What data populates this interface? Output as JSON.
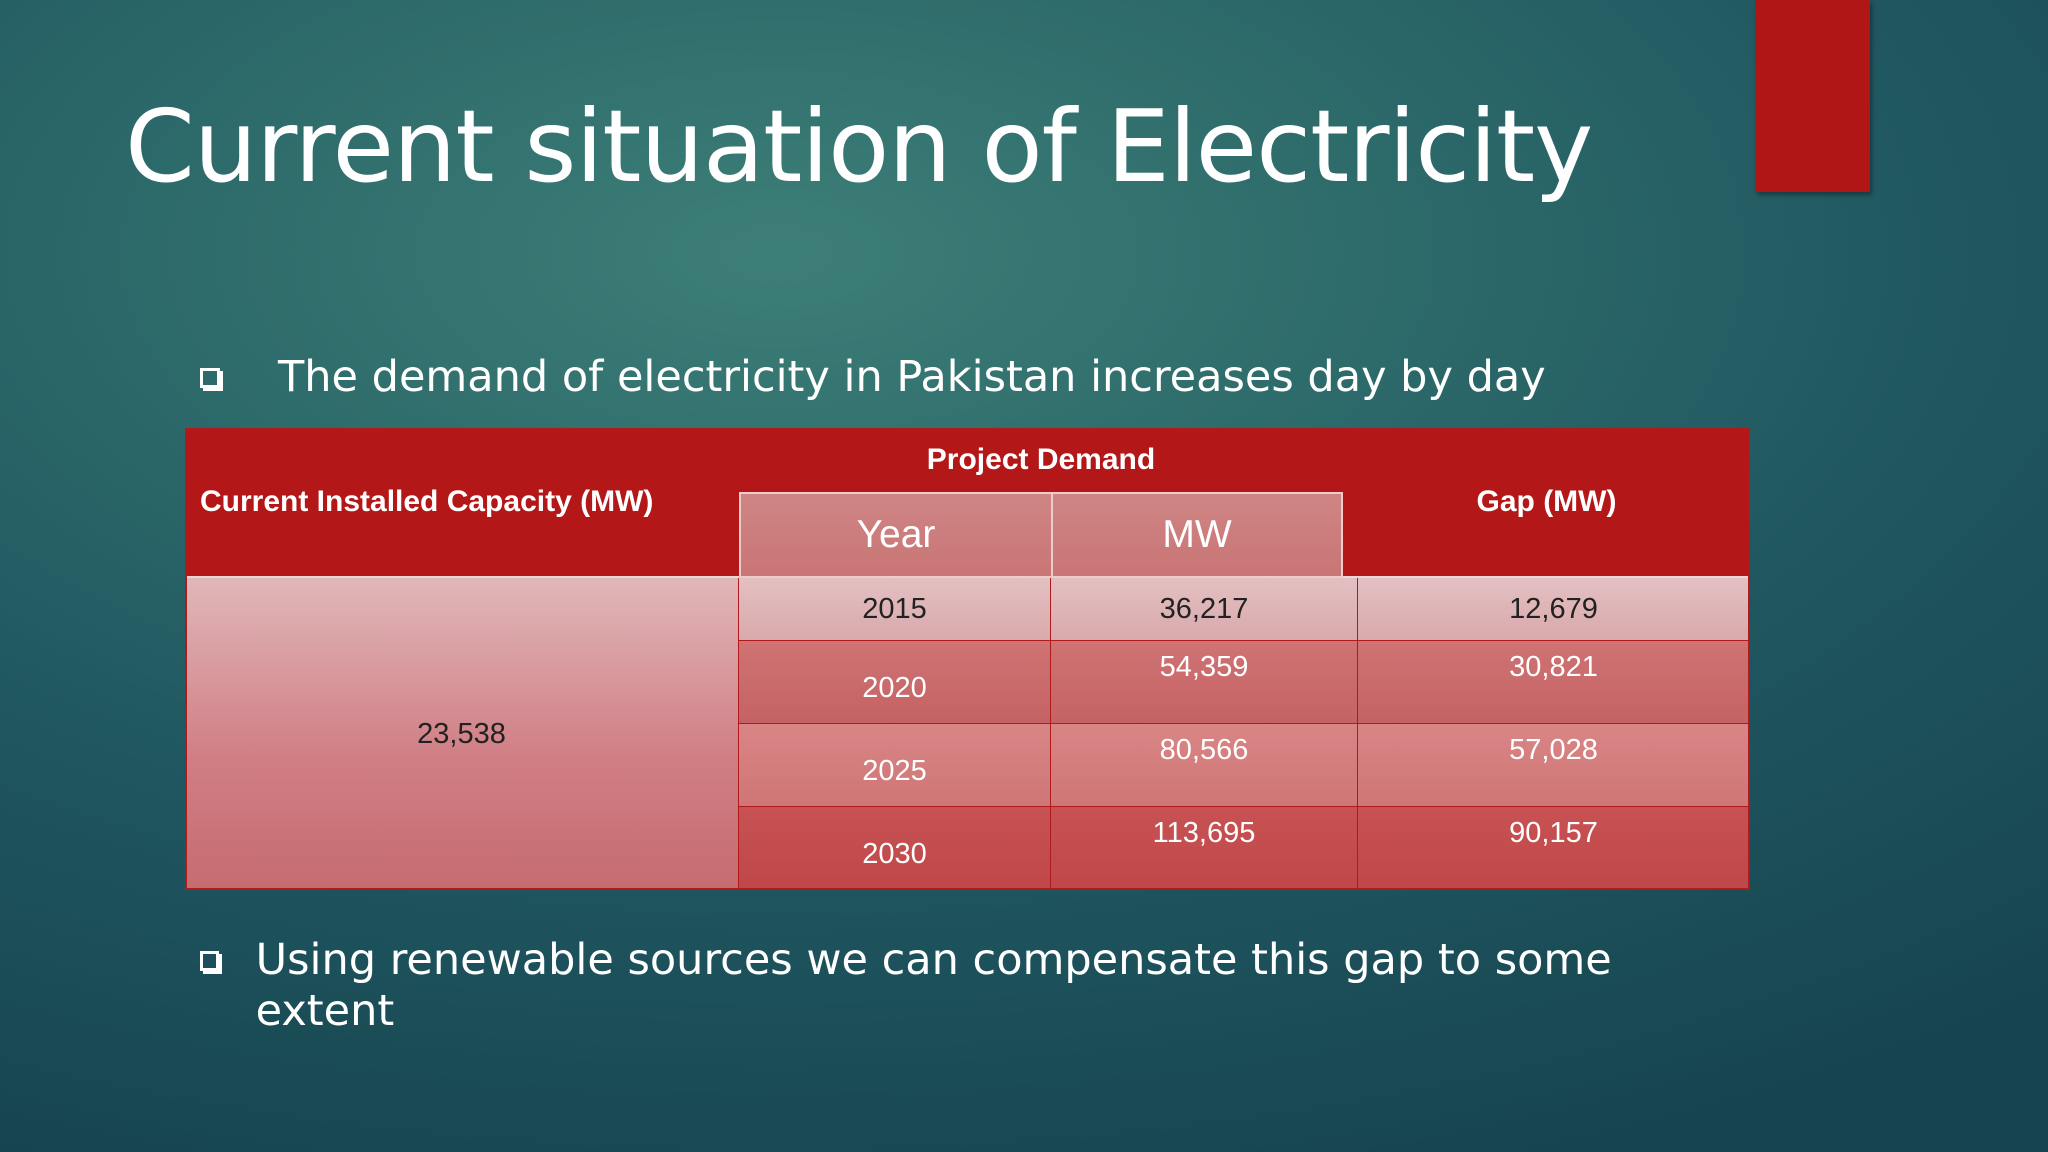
{
  "slide": {
    "title": "Current situation of Electricity",
    "bullets": [
      "The demand of electricity in Pakistan increases day by day",
      "Using renewable sources we can compensate this gap to some extent"
    ]
  },
  "table": {
    "headers": {
      "capacity": "Current Installed Capacity (MW)",
      "project_demand": "Project Demand",
      "year": "Year",
      "mw": "MW",
      "gap": "Gap (MW)"
    },
    "capacity_value": "23,538",
    "rows": [
      {
        "year": "2015",
        "mw": "36,217",
        "gap": "12,679"
      },
      {
        "year": "2020",
        "mw": "54,359",
        "gap": "30,821"
      },
      {
        "year": "2025",
        "mw": "80,566",
        "gap": "57,028"
      },
      {
        "year": "2030",
        "mw": "113,695",
        "gap": "90,157"
      }
    ]
  },
  "colors": {
    "accent": "#b01616",
    "background": "#2d6a6a"
  }
}
